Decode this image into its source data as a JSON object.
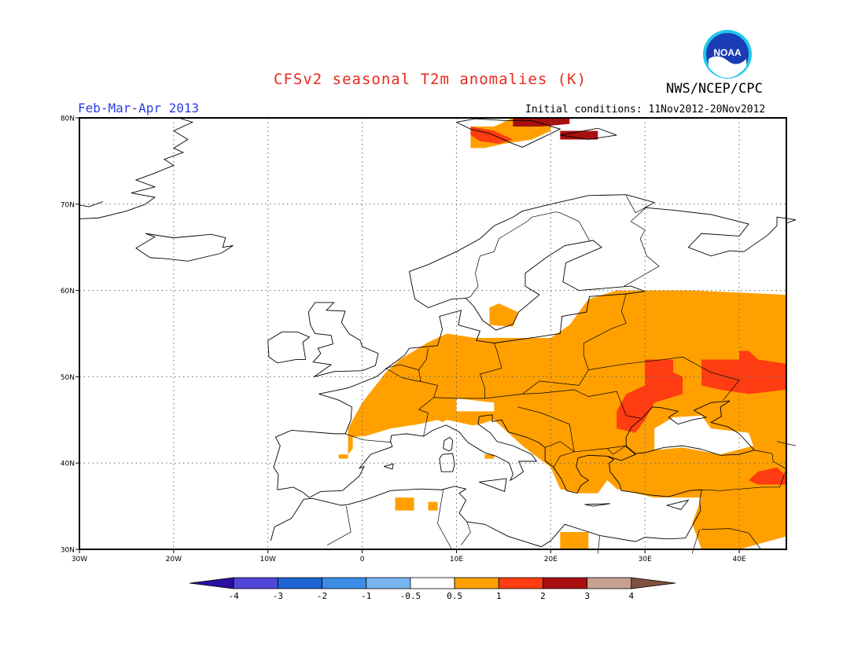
{
  "header": {
    "title": "CFSv2 seasonal T2m anomalies (K)",
    "organization": "NWS/NCEP/CPC",
    "period": "Feb-Mar-Apr 2013",
    "initial_conditions": "Initial conditions: 11Nov2012-20Nov2012",
    "logo_text": "NOAA"
  },
  "map": {
    "lon_range": [
      -30,
      45
    ],
    "lat_range": [
      30,
      80
    ],
    "lat_labels": [
      "30N",
      "40N",
      "50N",
      "60N",
      "70N",
      "80N"
    ],
    "lon_labels": [
      "30W",
      "20W",
      "10W",
      "0",
      "10E",
      "20E",
      "30E",
      "40E"
    ],
    "colors": {
      "0.5-1": "#ffa000",
      "1-2": "#ff3c12",
      "2-3": "#a81010"
    }
  },
  "legend": {
    "labels": [
      "-4",
      "-3",
      "-2",
      "-1",
      "-0.5",
      "0.5",
      "1",
      "2",
      "3",
      "4"
    ],
    "colors": [
      "#2a0fa0",
      "#5046d8",
      "#1e64d2",
      "#3c8ce6",
      "#78b4f0",
      "#ffffff",
      "#ffa000",
      "#ff3c12",
      "#a81010",
      "#c8a090",
      "#805040"
    ]
  }
}
